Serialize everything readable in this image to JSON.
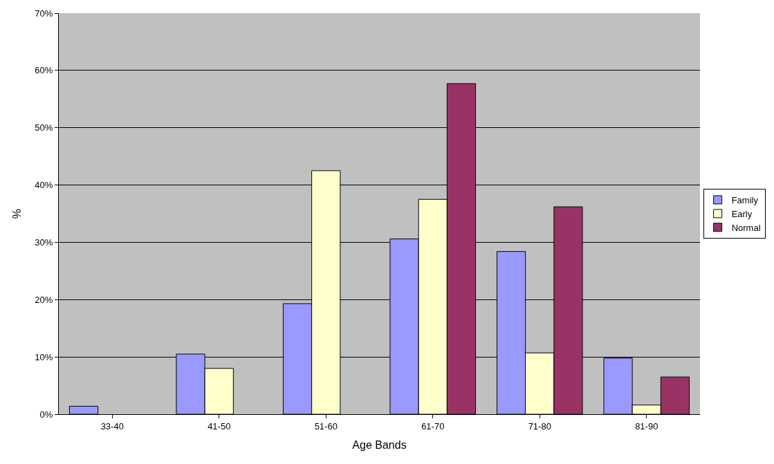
{
  "chart_data": {
    "type": "bar",
    "xlabel": "Age Bands",
    "ylabel": "%",
    "categories": [
      "33-40",
      "41-50",
      "51-60",
      "61-70",
      "71-80",
      "81-90"
    ],
    "series": [
      {
        "name": "Family",
        "color": "#9999ff",
        "values": [
          1.4,
          10.5,
          19.3,
          30.6,
          28.4,
          9.8
        ]
      },
      {
        "name": "Early",
        "color": "#ffffcc",
        "values": [
          null,
          8.0,
          42.5,
          37.5,
          10.7,
          1.6
        ]
      },
      {
        "name": "Normal",
        "color": "#993366",
        "values": [
          null,
          null,
          null,
          57.7,
          36.2,
          6.5
        ]
      }
    ],
    "ylim": [
      0,
      70
    ],
    "yticks": [
      {
        "value": 0,
        "label": "0%"
      },
      {
        "value": 10,
        "label": "10%"
      },
      {
        "value": 20,
        "label": "20%"
      },
      {
        "value": 30,
        "label": "30%"
      },
      {
        "value": 40,
        "label": "40%"
      },
      {
        "value": 50,
        "label": "50%"
      },
      {
        "value": 60,
        "label": "60%"
      },
      {
        "value": 70,
        "label": "70%"
      }
    ],
    "grid": "y",
    "legend": "right"
  }
}
